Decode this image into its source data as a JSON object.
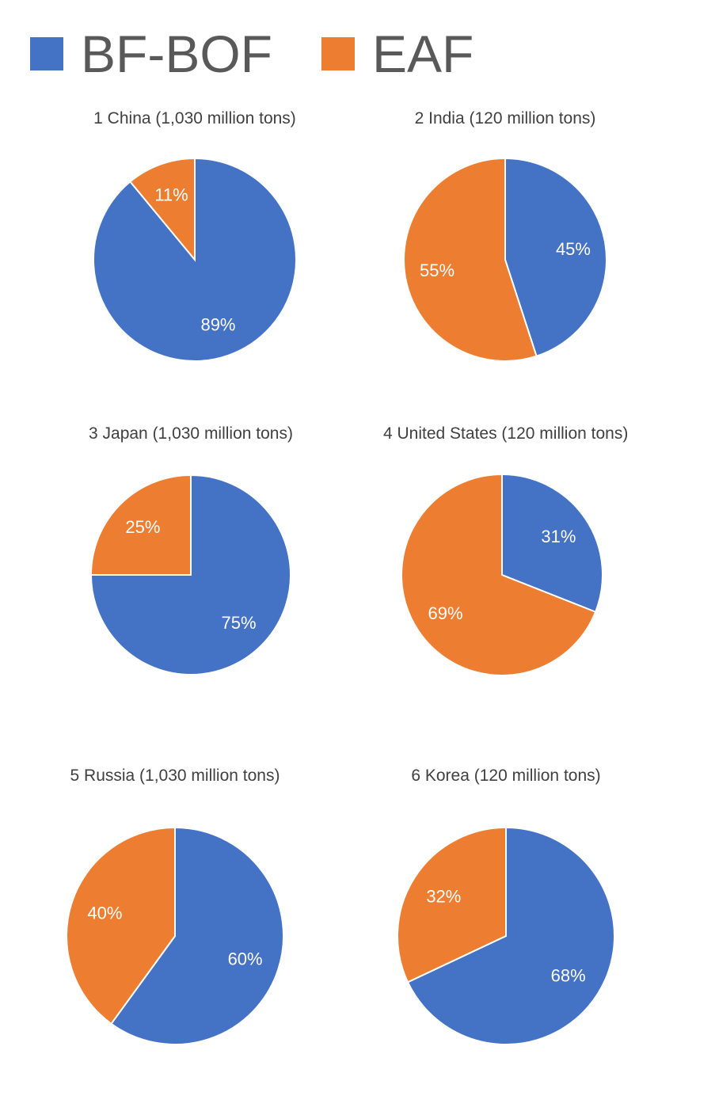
{
  "legend": [
    {
      "name": "BF-BOF",
      "color": "#4472C4"
    },
    {
      "name": "EAF",
      "color": "#ED7D31"
    }
  ],
  "chart_data": [
    {
      "type": "pie",
      "title": "1 China (1,030 million tons)",
      "labels": [
        "BF-BOF",
        "EAF"
      ],
      "values": [
        89,
        11
      ],
      "value_labels": [
        "89%",
        "11%"
      ],
      "colors": [
        "#4472C4",
        "#ED7D31"
      ]
    },
    {
      "type": "pie",
      "title": "2 India (120 million tons)",
      "labels": [
        "BF-BOF",
        "EAF"
      ],
      "values": [
        45,
        55
      ],
      "value_labels": [
        "45%",
        "55%"
      ],
      "colors": [
        "#4472C4",
        "#ED7D31"
      ]
    },
    {
      "type": "pie",
      "title": "3 Japan (1,030 million tons)",
      "labels": [
        "BF-BOF",
        "EAF"
      ],
      "values": [
        75,
        25
      ],
      "value_labels": [
        "75%",
        "25%"
      ],
      "colors": [
        "#4472C4",
        "#ED7D31"
      ]
    },
    {
      "type": "pie",
      "title": "4 United States (120 million tons)",
      "labels": [
        "BF-BOF",
        "EAF"
      ],
      "values": [
        31,
        69
      ],
      "value_labels": [
        "31%",
        "69%"
      ],
      "colors": [
        "#4472C4",
        "#ED7D31"
      ]
    },
    {
      "type": "pie",
      "title": "5 Russia (1,030 million tons)",
      "labels": [
        "BF-BOF",
        "EAF"
      ],
      "values": [
        60,
        40
      ],
      "value_labels": [
        "60%",
        "40%"
      ],
      "colors": [
        "#4472C4",
        "#ED7D31"
      ]
    },
    {
      "type": "pie",
      "title": "6 Korea (120 million tons)",
      "labels": [
        "BF-BOF",
        "EAF"
      ],
      "values": [
        68,
        32
      ],
      "value_labels": [
        "68%",
        "32%"
      ],
      "colors": [
        "#4472C4",
        "#ED7D31"
      ]
    }
  ]
}
